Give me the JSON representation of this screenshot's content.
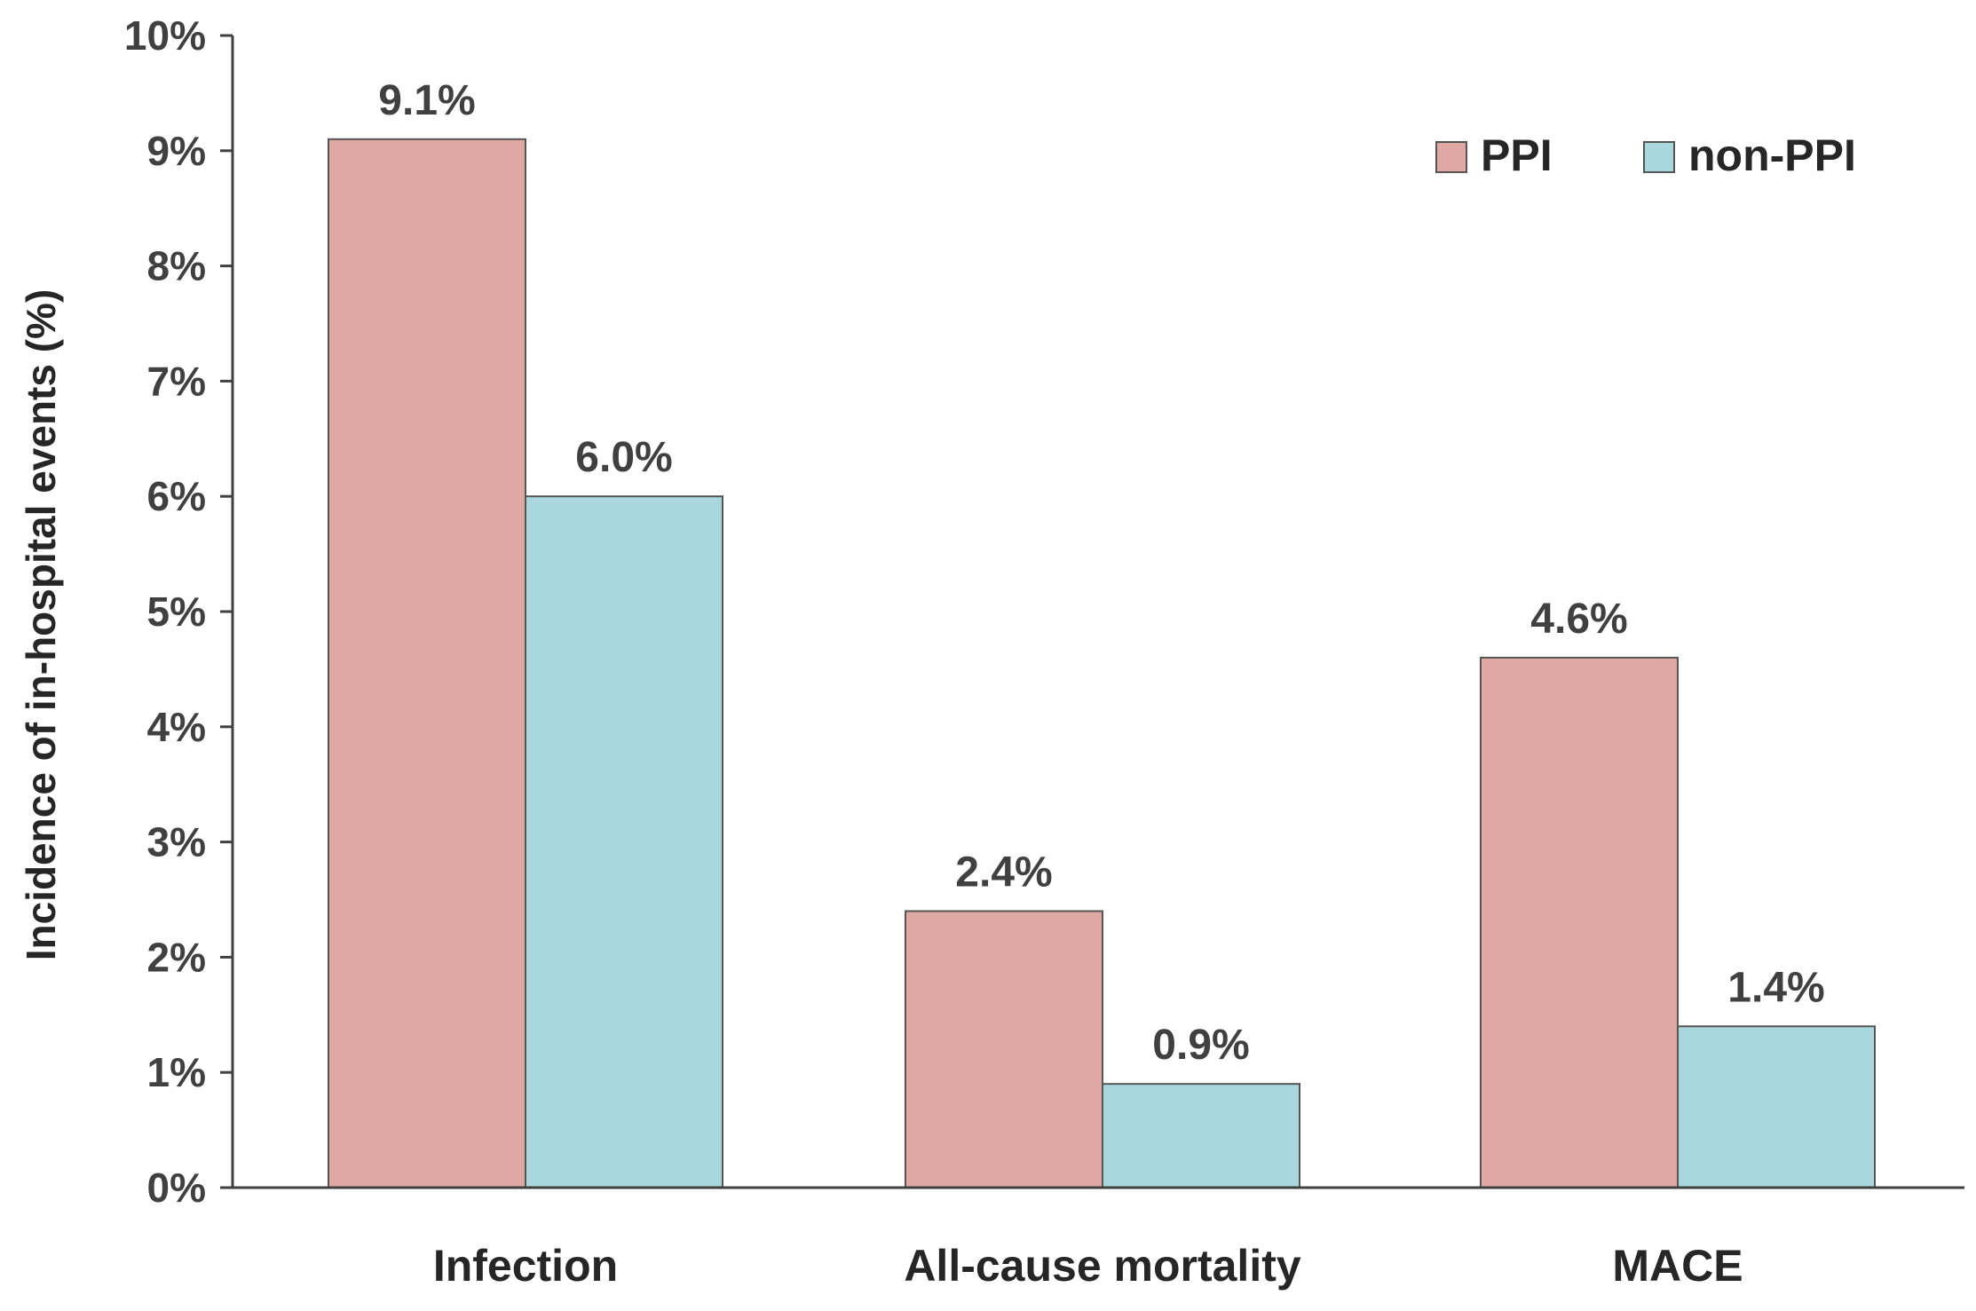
{
  "chart_data": {
    "type": "bar",
    "title": "",
    "xlabel": "",
    "ylabel": "Incidence of in-hospital events (%)",
    "ylim": [
      0,
      10
    ],
    "yticks": [
      0,
      1,
      2,
      3,
      4,
      5,
      6,
      7,
      8,
      9,
      10
    ],
    "ytick_labels": [
      "0%",
      "1%",
      "2%",
      "3%",
      "4%",
      "5%",
      "6%",
      "7%",
      "8%",
      "9%",
      "10%"
    ],
    "categories": [
      "Infection",
      "All-cause mortality",
      "MACE"
    ],
    "series": [
      {
        "name": "PPI",
        "values": [
          9.1,
          2.4,
          4.6
        ],
        "labels": [
          "9.1%",
          "2.4%",
          "4.6%"
        ],
        "color": "#e0a8a3"
      },
      {
        "name": "non-PPI",
        "values": [
          6.0,
          0.9,
          1.4
        ],
        "labels": [
          "6.0%",
          "0.9%",
          "1.4%"
        ],
        "color": "#a8d8dd"
      }
    ],
    "legend": {
      "position": "top-right",
      "entries": [
        "PPI",
        "non-PPI"
      ]
    },
    "grid": false,
    "axis_color": "#404040",
    "bar_edge_color": "#555555"
  }
}
